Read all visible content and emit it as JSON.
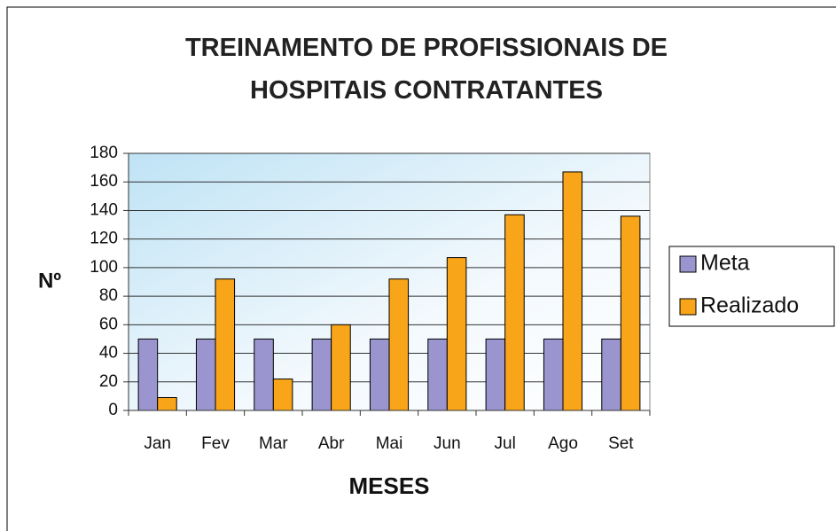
{
  "chart_data": {
    "type": "bar",
    "title": "TREINAMENTO DE PROFISSIONAIS DE HOSPITAIS CONTRATANTES",
    "xlabel": "MESES",
    "ylabel": "Nº",
    "categories": [
      "Jan",
      "Fev",
      "Mar",
      "Abr",
      "Mai",
      "Jun",
      "Jul",
      "Ago",
      "Set"
    ],
    "series": [
      {
        "name": "Meta",
        "color": "#9b95cf",
        "values": [
          50,
          50,
          50,
          50,
          50,
          50,
          50,
          50,
          50
        ]
      },
      {
        "name": "Realizado",
        "color": "#f9a51a",
        "values": [
          9,
          92,
          22,
          60,
          92,
          107,
          137,
          167,
          136
        ]
      }
    ],
    "ylim": [
      0,
      180
    ],
    "yticks": [
      0,
      20,
      40,
      60,
      80,
      100,
      120,
      140,
      160,
      180
    ],
    "grid": true,
    "legend": "right"
  }
}
